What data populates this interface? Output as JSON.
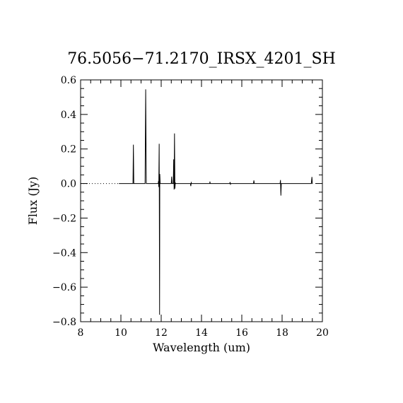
{
  "chart_data": {
    "type": "line",
    "title": "76.5056−71.2170_IRSX_4201_SH",
    "xlabel": "Wavelength (um)",
    "ylabel": "Flux (Jy)",
    "xlim": [
      8,
      20
    ],
    "ylim": [
      -0.8,
      0.6
    ],
    "xticks": [
      8,
      10,
      12,
      14,
      16,
      18,
      20
    ],
    "xtick_labels": [
      "8",
      "10",
      "12",
      "14",
      "16",
      "18",
      "20"
    ],
    "yticks": [
      -0.8,
      -0.6,
      -0.4,
      -0.2,
      0.0,
      0.2,
      0.4,
      0.6
    ],
    "ytick_labels": [
      "−0.8",
      "−0.6",
      "−0.4",
      "−0.2",
      "0.0",
      "0.2",
      "0.4",
      "0.6"
    ],
    "grid": false,
    "zero_line": {
      "style": "dotted",
      "x_range": [
        8,
        9.9
      ]
    },
    "series": [
      {
        "color": "#000000",
        "x": [
          9.9,
          10.6,
          10.62,
          10.64,
          10.66,
          11.2,
          11.23,
          11.26,
          11.29,
          11.85,
          11.87,
          11.88,
          11.9,
          11.92,
          11.93,
          11.95,
          11.97,
          11.99,
          12.5,
          12.52,
          12.54,
          12.56,
          12.6,
          12.62,
          12.64,
          12.66,
          12.68,
          12.7,
          12.72,
          12.74,
          12.76,
          13.45,
          13.47,
          13.49,
          13.51,
          14.4,
          14.42,
          14.44,
          15.4,
          15.42,
          15.44,
          15.46,
          16.58,
          16.6,
          16.62,
          17.9,
          17.92,
          17.94,
          17.96,
          19.45,
          19.48,
          19.5,
          19.52
        ],
        "y": [
          0.0,
          0.0,
          0.225,
          0.0,
          0.0,
          0.0,
          0.545,
          0.0,
          0.0,
          0.0,
          0.015,
          -0.02,
          0.23,
          -0.76,
          0.055,
          0.0,
          0.0,
          0.0,
          0.0,
          0.04,
          0.0,
          0.0,
          0.0,
          0.14,
          -0.035,
          0.29,
          -0.03,
          0.005,
          0.0,
          0.0,
          0.0,
          0.0,
          -0.015,
          0.005,
          0.0,
          0.0,
          0.008,
          0.0,
          0.0,
          0.008,
          -0.004,
          0.0,
          0.0,
          0.018,
          0.0,
          0.0,
          0.02,
          -0.07,
          0.0,
          0.0,
          0.038,
          0.0,
          0.0
        ]
      }
    ]
  }
}
